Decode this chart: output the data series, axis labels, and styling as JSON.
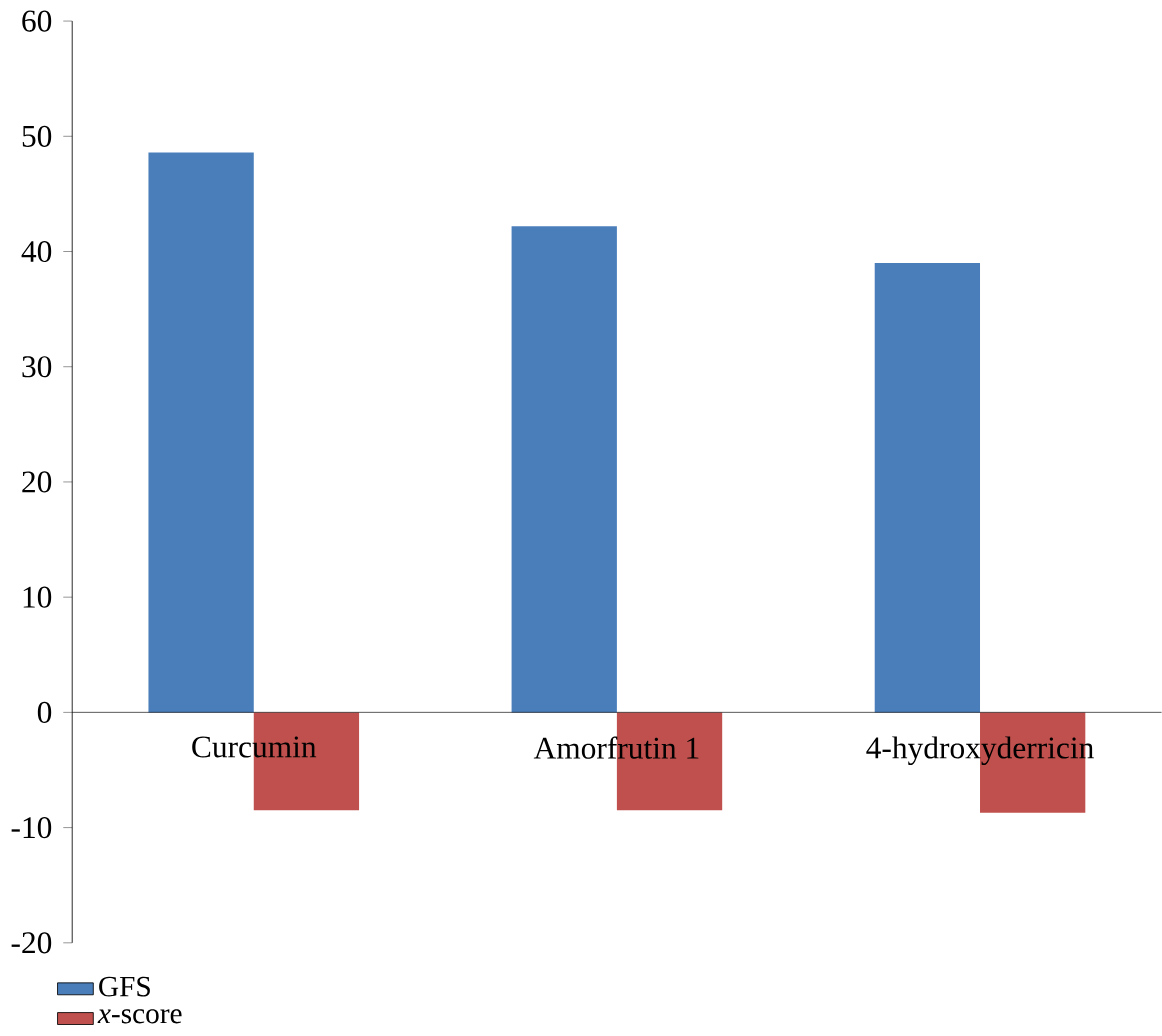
{
  "chart_data": {
    "type": "bar",
    "categories": [
      "Curcumin",
      "Amorfrutin 1",
      "4-hydroxyderricin"
    ],
    "series": [
      {
        "name": "GFS",
        "color": "#4a7ebb",
        "values": [
          48.6,
          42.2,
          39.0
        ]
      },
      {
        "name": "*x*-score",
        "color": "#c0504d",
        "values": [
          -8.5,
          -8.5,
          -8.7
        ]
      }
    ],
    "ylim": [
      -20,
      60
    ],
    "yticks": [
      -20,
      -10,
      0,
      10,
      20,
      30,
      40,
      50,
      60
    ],
    "grid": false,
    "legend": "bottom left"
  }
}
